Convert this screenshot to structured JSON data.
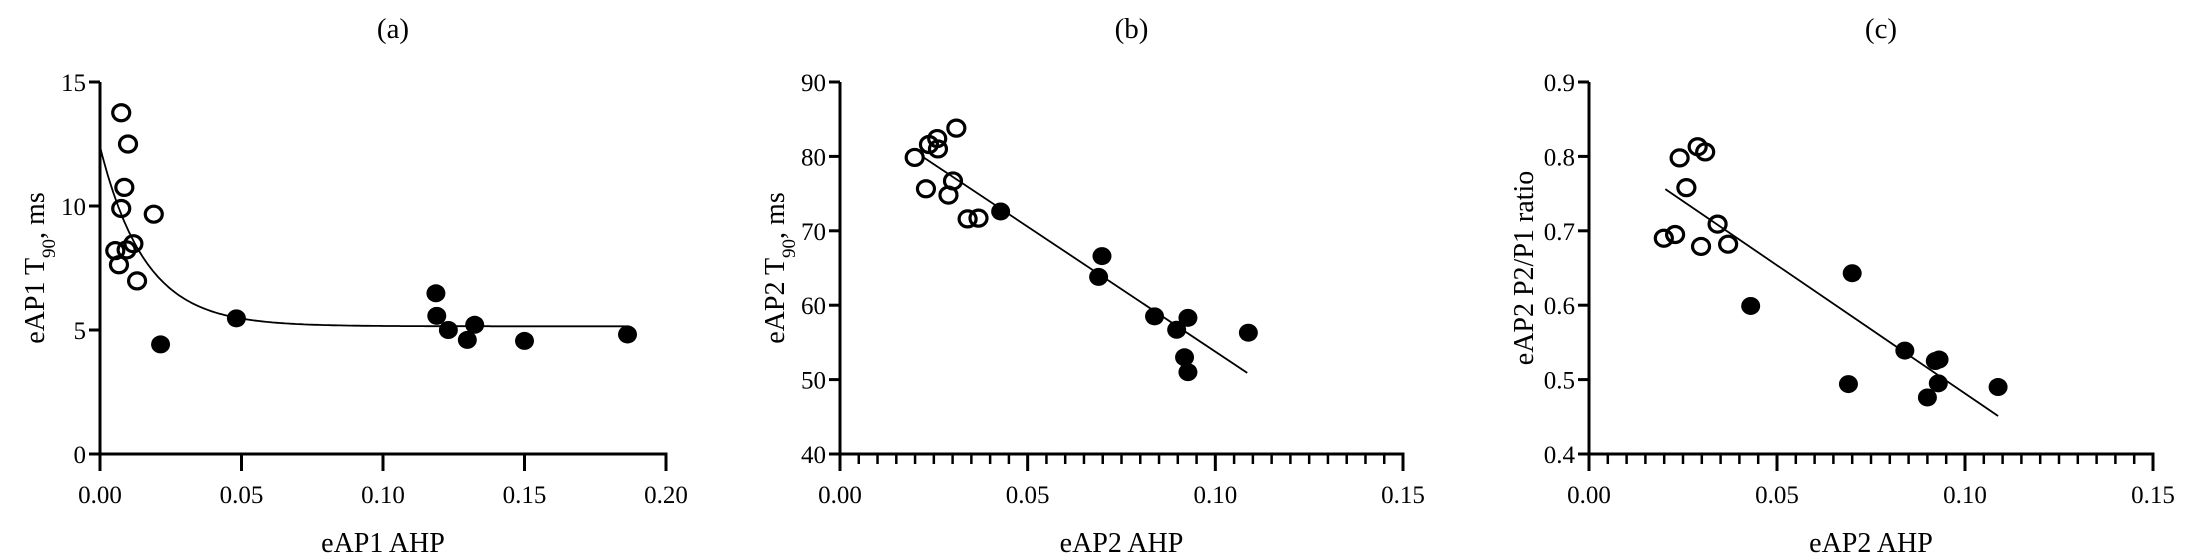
{
  "chart_data": [
    {
      "type": "scatter",
      "title": "(a)",
      "xlabel": "eAP1 AHP",
      "ylabel_parts": [
        "eAP1 T",
        "90",
        ", ms"
      ],
      "xlim": [
        0,
        0.2
      ],
      "ylim": [
        0,
        15
      ],
      "xticks": [
        "0.00",
        "0.05",
        "0.10",
        "0.15",
        "0.20"
      ],
      "xtick_values": [
        0,
        0.05,
        0.1,
        0.15,
        0.2
      ],
      "yticks": [
        "0",
        "5",
        "10",
        "15"
      ],
      "ytick_values": [
        0,
        5,
        10,
        15
      ],
      "x_minor_step": null,
      "grid": false,
      "series": [
        {
          "name": "open",
          "marker": "open-circle",
          "points": [
            [
              0.0075,
              13.76
            ],
            [
              0.0099,
              12.5
            ],
            [
              0.0086,
              10.75
            ],
            [
              0.0075,
              9.9
            ],
            [
              0.019,
              9.67
            ],
            [
              0.0054,
              8.2
            ],
            [
              0.0094,
              8.23
            ],
            [
              0.0118,
              8.48
            ],
            [
              0.0067,
              7.63
            ],
            [
              0.0131,
              6.98
            ]
          ]
        },
        {
          "name": "filled",
          "marker": "filled-circle",
          "points": [
            [
              0.0214,
              4.42
            ],
            [
              0.0482,
              5.47
            ],
            [
              0.1187,
              6.48
            ],
            [
              0.119,
              5.57
            ],
            [
              0.1231,
              5.0
            ],
            [
              0.1298,
              4.6
            ],
            [
              0.1324,
              5.21
            ],
            [
              0.15,
              4.56
            ],
            [
              0.1864,
              4.82
            ]
          ]
        }
      ],
      "fit": {
        "type": "exponential-decay",
        "plateau": 5.15,
        "y0": 12.4,
        "k": 63,
        "x_range": [
          0,
          0.187
        ]
      }
    },
    {
      "type": "scatter",
      "title": "(b)",
      "xlabel": "eAP2 AHP",
      "ylabel_parts": [
        "eAP2 T",
        "90",
        ", ms"
      ],
      "xlim": [
        0,
        0.15
      ],
      "ylim": [
        40,
        90
      ],
      "xticks": [
        "0.00",
        "0.05",
        "0.10",
        "0.15"
      ],
      "xtick_values": [
        0,
        0.05,
        0.1,
        0.15
      ],
      "yticks": [
        "40",
        "50",
        "60",
        "70",
        "80",
        "90"
      ],
      "ytick_values": [
        40,
        50,
        60,
        70,
        80,
        90
      ],
      "x_minor_step": 0.005,
      "grid": false,
      "series": [
        {
          "name": "open",
          "marker": "open-circle",
          "points": [
            [
              0.0199,
              79.86
            ],
            [
              0.0229,
              75.65
            ],
            [
              0.0237,
              81.6
            ],
            [
              0.0259,
              82.4
            ],
            [
              0.0261,
              81.0
            ],
            [
              0.0289,
              74.8
            ],
            [
              0.0301,
              76.7
            ],
            [
              0.031,
              83.8
            ],
            [
              0.034,
              71.6
            ],
            [
              0.0369,
              71.7
            ]
          ]
        },
        {
          "name": "filled",
          "marker": "filled-circle",
          "points": [
            [
              0.0428,
              72.6
            ],
            [
              0.0698,
              66.6
            ],
            [
              0.0689,
              63.8
            ],
            [
              0.0838,
              58.5
            ],
            [
              0.0927,
              58.3
            ],
            [
              0.0897,
              56.7
            ],
            [
              0.1088,
              56.3
            ],
            [
              0.0918,
              53.0
            ],
            [
              0.0927,
              51.0
            ]
          ]
        }
      ],
      "fit": {
        "type": "linear",
        "from": [
          0.0223,
          79.86
        ],
        "to": [
          0.1085,
          50.9
        ]
      }
    },
    {
      "type": "scatter",
      "title": "(c)",
      "xlabel": "eAP2 AHP",
      "ylabel_parts": [
        "eAP2 P2/P1 ratio",
        "",
        ""
      ],
      "xlim": [
        0,
        0.15
      ],
      "ylim": [
        0.4,
        0.9
      ],
      "xticks": [
        "0.00",
        "0.05",
        "0.10",
        "0.15"
      ],
      "xtick_values": [
        0,
        0.05,
        0.1,
        0.15
      ],
      "yticks": [
        "0.4",
        "0.5",
        "0.6",
        "0.7",
        "0.8",
        "0.9"
      ],
      "ytick_values": [
        0.4,
        0.5,
        0.6,
        0.7,
        0.8,
        0.9
      ],
      "x_minor_step": 0.005,
      "grid": false,
      "series": [
        {
          "name": "open",
          "marker": "open-circle",
          "points": [
            [
              0.0199,
              0.69
            ],
            [
              0.0229,
              0.695
            ],
            [
              0.0241,
              0.798
            ],
            [
              0.0259,
              0.758
            ],
            [
              0.0289,
              0.813
            ],
            [
              0.0309,
              0.806
            ],
            [
              0.0298,
              0.679
            ],
            [
              0.0342,
              0.709
            ],
            [
              0.037,
              0.682
            ]
          ]
        },
        {
          "name": "filled",
          "marker": "filled-circle",
          "points": [
            [
              0.043,
              0.599
            ],
            [
              0.07,
              0.643
            ],
            [
              0.069,
              0.494
            ],
            [
              0.084,
              0.539
            ],
            [
              0.0921,
              0.525
            ],
            [
              0.0931,
              0.527
            ],
            [
              0.0929,
              0.495
            ],
            [
              0.09,
              0.476
            ],
            [
              0.1088,
              0.49
            ]
          ]
        }
      ],
      "fit": {
        "type": "linear",
        "from": [
          0.0203,
          0.756
        ],
        "to": [
          0.1088,
          0.451
        ]
      }
    }
  ]
}
